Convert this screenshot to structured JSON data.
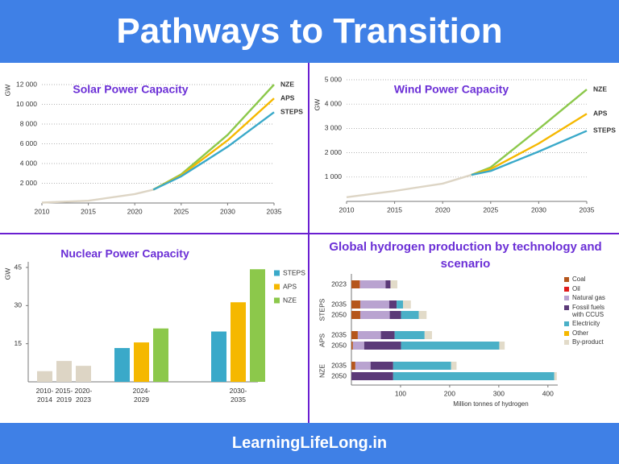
{
  "header": {
    "title": "Pathways to Transition"
  },
  "footer": {
    "text": "LearningLifeLong.in"
  },
  "chart_data": [
    {
      "type": "line",
      "title": "Solar Power Capacity",
      "y_label": "GW",
      "x": [
        2010,
        2015,
        2020,
        2022,
        2025,
        2030,
        2035
      ],
      "series": [
        {
          "color": "#ddd5c5",
          "values": [
            40,
            230,
            900,
            1350,
            null,
            null,
            null
          ]
        },
        {
          "name": "NZE",
          "color": "#8cc84b",
          "values": [
            null,
            null,
            null,
            1350,
            2900,
            6900,
            12000
          ]
        },
        {
          "name": "APS",
          "color": "#f5b800",
          "values": [
            null,
            null,
            null,
            1350,
            2800,
            6350,
            10600
          ]
        },
        {
          "name": "STEPS",
          "color": "#3aa9c9",
          "values": [
            null,
            null,
            null,
            1350,
            2700,
            5700,
            9200
          ]
        }
      ],
      "xlim": [
        2010,
        2035
      ],
      "xticks": [
        2010,
        2015,
        2020,
        2025,
        2030,
        2035
      ],
      "ylim": [
        0,
        12000
      ],
      "yticks": [
        {
          "value": 2000,
          "label": "2 000"
        },
        {
          "value": 4000,
          "label": "4 000"
        },
        {
          "value": 6000,
          "label": "6 000"
        },
        {
          "value": 8000,
          "label": "8 000"
        },
        {
          "value": 10000,
          "label": "10 000"
        },
        {
          "value": 12000,
          "label": "12 000"
        }
      ],
      "grid": true
    },
    {
      "type": "line",
      "title": "Wind Power Capacity",
      "y_label": "GW",
      "x": [
        2010,
        2015,
        2020,
        2023,
        2025,
        2030,
        2035
      ],
      "series": [
        {
          "color": "#ddd5c5",
          "values": [
            170,
            430,
            730,
            1090,
            null,
            null,
            null
          ]
        },
        {
          "name": "NZE",
          "color": "#8cc84b",
          "values": [
            null,
            null,
            null,
            1090,
            1400,
            2980,
            4600
          ]
        },
        {
          "name": "APS",
          "color": "#f5b800",
          "values": [
            null,
            null,
            null,
            1090,
            1330,
            2380,
            3600
          ]
        },
        {
          "name": "STEPS",
          "color": "#3aa9c9",
          "values": [
            null,
            null,
            null,
            1090,
            1250,
            2050,
            2900
          ]
        }
      ],
      "xlim": [
        2010,
        2035
      ],
      "xticks": [
        2010,
        2015,
        2020,
        2025,
        2030,
        2035
      ],
      "ylim": [
        0,
        5000
      ],
      "yticks": [
        {
          "value": 1000,
          "label": "1 000"
        },
        {
          "value": 2000,
          "label": "2 000"
        },
        {
          "value": 3000,
          "label": "3 000"
        },
        {
          "value": 4000,
          "label": "4 000"
        },
        {
          "value": 5000,
          "label": "5 000"
        }
      ],
      "grid": true
    },
    {
      "type": "bar",
      "title": "Nuclear Power Capacity",
      "y_label": "GW",
      "categories": [
        "2010-2014",
        "2015-2019",
        "2020-2023",
        "2024-2029",
        "2030-2035"
      ],
      "series": [
        {
          "color": "#ddd5c5",
          "values": [
            4.2,
            8.2,
            6.3,
            null,
            null
          ]
        },
        {
          "name": "STEPS",
          "color": "#3aa9c9",
          "values": [
            null,
            null,
            null,
            13.3,
            19.8
          ]
        },
        {
          "name": "APS",
          "color": "#f5b800",
          "values": [
            null,
            null,
            null,
            15.5,
            31.3
          ]
        },
        {
          "name": "NZE",
          "color": "#8cc84b",
          "values": [
            null,
            null,
            null,
            21,
            44.3
          ]
        }
      ],
      "ylim": [
        0,
        45
      ],
      "yticks": [
        15,
        30,
        45
      ],
      "legend": "right"
    },
    {
      "type": "barh",
      "stacked": true,
      "title": "Global hydrogen production by technology and scenario",
      "x_label": "Million tonnes of hydrogen",
      "groups": [
        {
          "categories": [
            "2023"
          ]
        },
        {
          "name": "STEPS",
          "categories": [
            "2035",
            "2050"
          ]
        },
        {
          "name": "APS",
          "categories": [
            "2035",
            "2050"
          ]
        },
        {
          "name": "NZE",
          "categories": [
            "2035",
            "2050"
          ]
        }
      ],
      "series": [
        {
          "name": "Coal",
          "color": "#b5561c",
          "values": [
            17,
            18,
            18,
            13,
            3,
            8,
            0
          ]
        },
        {
          "name": "Oil",
          "color": "#e01b1b",
          "values": [
            0.5,
            0,
            0,
            0,
            0,
            0,
            0
          ]
        },
        {
          "name": "Natural gas",
          "color": "#b9a3d0",
          "values": [
            52,
            59,
            60,
            47,
            23,
            31,
            0
          ]
        },
        {
          "name": "Fossil fuels with CCUS",
          "color": "#5b3a78",
          "values": [
            10,
            15,
            23,
            28,
            75,
            46,
            85
          ]
        },
        {
          "name": "Electricity",
          "color": "#4ab0c7",
          "values": [
            0,
            13,
            36,
            61,
            200,
            118,
            328
          ]
        },
        {
          "name": "Other",
          "color": "#f5b800",
          "values": [
            0,
            0,
            0,
            0,
            0,
            0,
            0
          ]
        },
        {
          "name": "By-product",
          "color": "#e2dbc9",
          "values": [
            14,
            16,
            16,
            15,
            11,
            11,
            5
          ]
        }
      ],
      "xlim": [
        0,
        420
      ],
      "xticks": [
        100,
        200,
        300,
        400
      ],
      "legend": "right"
    }
  ]
}
